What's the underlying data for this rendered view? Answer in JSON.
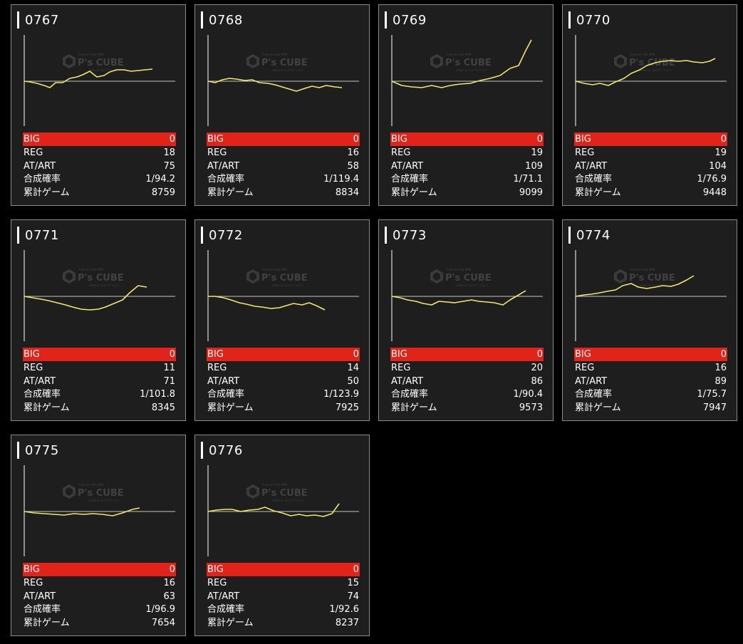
{
  "colors": {
    "background": "#000000",
    "card": "#1e1e1e",
    "border": "#8a8a8a",
    "big_row": "#e2231a",
    "line": "#f0e66e",
    "axis": "#ffffff"
  },
  "labels": {
    "big": "BIG",
    "reg": "REG",
    "atart": "AT/ART",
    "gousei": "合成確率",
    "ruikei": "累計ゲーム"
  },
  "watermark": {
    "brand": "P's CUBE",
    "small_top": "Fujimino Slot MPK",
    "small_bottom": "video & スロアナリスト"
  },
  "machines": [
    {
      "id": "0767",
      "big": "0",
      "reg": "18",
      "atart": "75",
      "gousei": "1/94.2",
      "ruikei": "8759",
      "line": [
        [
          0,
          0
        ],
        [
          4,
          -1
        ],
        [
          9,
          -3
        ],
        [
          14,
          -6
        ],
        [
          18,
          -9
        ],
        [
          22,
          -2
        ],
        [
          27,
          -2
        ],
        [
          32,
          4
        ],
        [
          37,
          6
        ],
        [
          41,
          9
        ],
        [
          46,
          14
        ],
        [
          51,
          6
        ],
        [
          56,
          8
        ],
        [
          60,
          13
        ],
        [
          65,
          16
        ],
        [
          70,
          16
        ],
        [
          75,
          14
        ],
        [
          80,
          15
        ],
        [
          85,
          16
        ],
        [
          90,
          17
        ]
      ]
    },
    {
      "id": "0768",
      "big": "0",
      "reg": "16",
      "atart": "58",
      "gousei": "1/119.4",
      "ruikei": "8834",
      "line": [
        [
          0,
          0
        ],
        [
          5,
          -2
        ],
        [
          10,
          2
        ],
        [
          15,
          4
        ],
        [
          20,
          3
        ],
        [
          26,
          1
        ],
        [
          31,
          2
        ],
        [
          36,
          -2
        ],
        [
          42,
          -3
        ],
        [
          47,
          -5
        ],
        [
          52,
          -8
        ],
        [
          57,
          -11
        ],
        [
          62,
          -14
        ],
        [
          68,
          -10
        ],
        [
          73,
          -7
        ],
        [
          78,
          -9
        ],
        [
          83,
          -6
        ],
        [
          89,
          -8
        ],
        [
          94,
          -9
        ]
      ]
    },
    {
      "id": "0769",
      "big": "0",
      "reg": "19",
      "atart": "109",
      "gousei": "1/71.1",
      "ruikei": "9099",
      "line": [
        [
          0,
          0
        ],
        [
          7,
          -6
        ],
        [
          14,
          -8
        ],
        [
          21,
          -9
        ],
        [
          28,
          -6
        ],
        [
          35,
          -9
        ],
        [
          41,
          -6
        ],
        [
          48,
          -4
        ],
        [
          55,
          -3
        ],
        [
          62,
          1
        ],
        [
          69,
          4
        ],
        [
          76,
          8
        ],
        [
          83,
          18
        ],
        [
          89,
          22
        ],
        [
          94,
          43
        ],
        [
          98,
          58
        ]
      ]
    },
    {
      "id": "0770",
      "big": "0",
      "reg": "19",
      "atart": "104",
      "gousei": "1/76.9",
      "ruikei": "9448",
      "line": [
        [
          0,
          0
        ],
        [
          6,
          -3
        ],
        [
          12,
          -5
        ],
        [
          17,
          -3
        ],
        [
          23,
          -6
        ],
        [
          28,
          -1
        ],
        [
          34,
          4
        ],
        [
          39,
          11
        ],
        [
          45,
          16
        ],
        [
          50,
          22
        ],
        [
          56,
          26
        ],
        [
          61,
          28
        ],
        [
          67,
          29
        ],
        [
          72,
          28
        ],
        [
          78,
          29
        ],
        [
          83,
          27
        ],
        [
          89,
          26
        ],
        [
          94,
          28
        ],
        [
          98,
          32
        ]
      ]
    },
    {
      "id": "0771",
      "big": "0",
      "reg": "11",
      "atart": "71",
      "gousei": "1/101.8",
      "ruikei": "8345",
      "line": [
        [
          0,
          0
        ],
        [
          6,
          -2
        ],
        [
          12,
          -4
        ],
        [
          17,
          -6
        ],
        [
          23,
          -9
        ],
        [
          29,
          -12
        ],
        [
          34,
          -15
        ],
        [
          40,
          -18
        ],
        [
          46,
          -19
        ],
        [
          52,
          -18
        ],
        [
          57,
          -15
        ],
        [
          63,
          -10
        ],
        [
          69,
          -5
        ],
        [
          74,
          5
        ],
        [
          80,
          15
        ],
        [
          86,
          13
        ]
      ]
    },
    {
      "id": "0772",
      "big": "0",
      "reg": "14",
      "atart": "50",
      "gousei": "1/123.9",
      "ruikei": "7925",
      "line": [
        [
          0,
          0
        ],
        [
          5,
          0
        ],
        [
          11,
          -2
        ],
        [
          16,
          -5
        ],
        [
          22,
          -9
        ],
        [
          27,
          -11
        ],
        [
          33,
          -14
        ],
        [
          38,
          -15
        ],
        [
          44,
          -17
        ],
        [
          50,
          -16
        ],
        [
          55,
          -13
        ],
        [
          60,
          -10
        ],
        [
          66,
          -12
        ],
        [
          71,
          -9
        ],
        [
          76,
          -13
        ],
        [
          82,
          -19
        ]
      ]
    },
    {
      "id": "0773",
      "big": "0",
      "reg": "20",
      "atart": "86",
      "gousei": "1/90.4",
      "ruikei": "9573",
      "line": [
        [
          0,
          0
        ],
        [
          6,
          -2
        ],
        [
          11,
          -5
        ],
        [
          17,
          -7
        ],
        [
          22,
          -10
        ],
        [
          28,
          -12
        ],
        [
          33,
          -7
        ],
        [
          39,
          -8
        ],
        [
          44,
          -9
        ],
        [
          50,
          -7
        ],
        [
          56,
          -5
        ],
        [
          61,
          -7
        ],
        [
          67,
          -8
        ],
        [
          72,
          -9
        ],
        [
          78,
          -12
        ],
        [
          83,
          -5
        ],
        [
          89,
          2
        ],
        [
          94,
          8
        ]
      ]
    },
    {
      "id": "0774",
      "big": "0",
      "reg": "16",
      "atart": "89",
      "gousei": "1/75.7",
      "ruikei": "7947",
      "line": [
        [
          0,
          0
        ],
        [
          6,
          2
        ],
        [
          11,
          3
        ],
        [
          17,
          5
        ],
        [
          22,
          7
        ],
        [
          28,
          9
        ],
        [
          33,
          15
        ],
        [
          39,
          18
        ],
        [
          44,
          13
        ],
        [
          50,
          11
        ],
        [
          56,
          13
        ],
        [
          61,
          15
        ],
        [
          67,
          14
        ],
        [
          72,
          17
        ],
        [
          78,
          23
        ],
        [
          83,
          29
        ]
      ]
    },
    {
      "id": "0775",
      "big": "0",
      "reg": "16",
      "atart": "63",
      "gousei": "1/96.9",
      "ruikei": "7654",
      "line": [
        [
          0,
          0
        ],
        [
          7,
          -2
        ],
        [
          14,
          -3
        ],
        [
          21,
          -4
        ],
        [
          28,
          -5
        ],
        [
          35,
          -3
        ],
        [
          42,
          -4
        ],
        [
          48,
          -3
        ],
        [
          55,
          -4
        ],
        [
          62,
          -6
        ],
        [
          69,
          -2
        ],
        [
          76,
          3
        ],
        [
          81,
          5
        ]
      ]
    },
    {
      "id": "0776",
      "big": "0",
      "reg": "15",
      "atart": "74",
      "gousei": "1/92.6",
      "ruikei": "8237",
      "line": [
        [
          0,
          0
        ],
        [
          6,
          2
        ],
        [
          12,
          3
        ],
        [
          17,
          3
        ],
        [
          23,
          0
        ],
        [
          29,
          2
        ],
        [
          35,
          3
        ],
        [
          40,
          6
        ],
        [
          46,
          1
        ],
        [
          52,
          -2
        ],
        [
          58,
          -6
        ],
        [
          64,
          -4
        ],
        [
          69,
          -6
        ],
        [
          75,
          -5
        ],
        [
          81,
          -7
        ],
        [
          87,
          -3
        ],
        [
          92,
          11
        ]
      ]
    }
  ]
}
